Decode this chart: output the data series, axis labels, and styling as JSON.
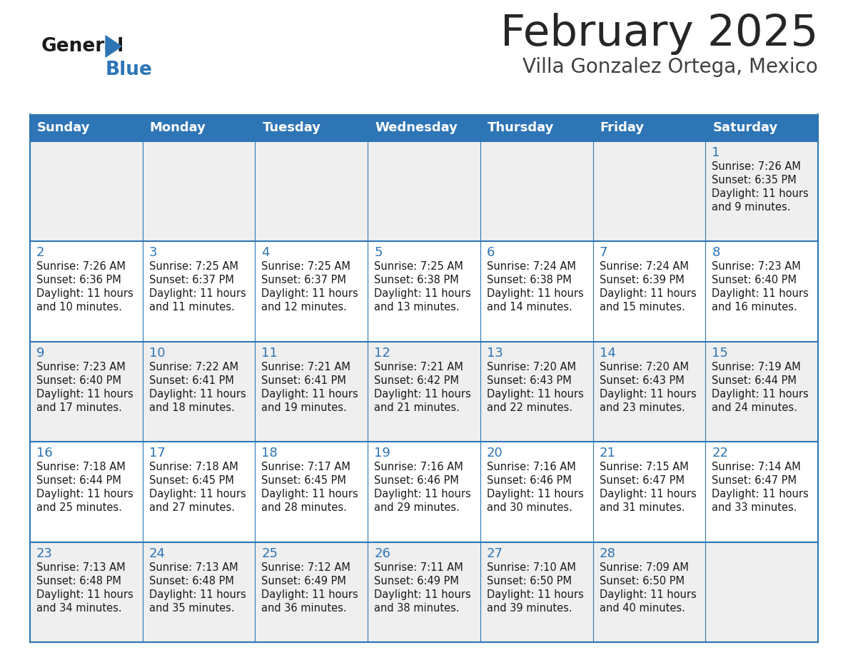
{
  "title": "February 2025",
  "subtitle": "Villa Gonzalez Ortega, Mexico",
  "header_bg": "#2e75b6",
  "header_text_color": "#ffffff",
  "cell_bg_odd": "#efefef",
  "cell_bg_even": "#ffffff",
  "border_color": "#2e75b6",
  "day_headers": [
    "Sunday",
    "Monday",
    "Tuesday",
    "Wednesday",
    "Thursday",
    "Friday",
    "Saturday"
  ],
  "title_color": "#262626",
  "subtitle_color": "#404040",
  "day_num_color": "#2e75b6",
  "cell_text_color": "#1a1a1a",
  "logo_general_color": "#1a1a1a",
  "logo_blue_color": "#2e75b6",
  "calendar_data": [
    [
      null,
      null,
      null,
      null,
      null,
      null,
      {
        "day": "1",
        "sunrise": "7:26 AM",
        "sunset": "6:35 PM",
        "daylight": "11 hours",
        "daylight2": "and 9 minutes."
      }
    ],
    [
      {
        "day": "2",
        "sunrise": "7:26 AM",
        "sunset": "6:36 PM",
        "daylight": "11 hours",
        "daylight2": "and 10 minutes."
      },
      {
        "day": "3",
        "sunrise": "7:25 AM",
        "sunset": "6:37 PM",
        "daylight": "11 hours",
        "daylight2": "and 11 minutes."
      },
      {
        "day": "4",
        "sunrise": "7:25 AM",
        "sunset": "6:37 PM",
        "daylight": "11 hours",
        "daylight2": "and 12 minutes."
      },
      {
        "day": "5",
        "sunrise": "7:25 AM",
        "sunset": "6:38 PM",
        "daylight": "11 hours",
        "daylight2": "and 13 minutes."
      },
      {
        "day": "6",
        "sunrise": "7:24 AM",
        "sunset": "6:38 PM",
        "daylight": "11 hours",
        "daylight2": "and 14 minutes."
      },
      {
        "day": "7",
        "sunrise": "7:24 AM",
        "sunset": "6:39 PM",
        "daylight": "11 hours",
        "daylight2": "and 15 minutes."
      },
      {
        "day": "8",
        "sunrise": "7:23 AM",
        "sunset": "6:40 PM",
        "daylight": "11 hours",
        "daylight2": "and 16 minutes."
      }
    ],
    [
      {
        "day": "9",
        "sunrise": "7:23 AM",
        "sunset": "6:40 PM",
        "daylight": "11 hours",
        "daylight2": "and 17 minutes."
      },
      {
        "day": "10",
        "sunrise": "7:22 AM",
        "sunset": "6:41 PM",
        "daylight": "11 hours",
        "daylight2": "and 18 minutes."
      },
      {
        "day": "11",
        "sunrise": "7:21 AM",
        "sunset": "6:41 PM",
        "daylight": "11 hours",
        "daylight2": "and 19 minutes."
      },
      {
        "day": "12",
        "sunrise": "7:21 AM",
        "sunset": "6:42 PM",
        "daylight": "11 hours",
        "daylight2": "and 21 minutes."
      },
      {
        "day": "13",
        "sunrise": "7:20 AM",
        "sunset": "6:43 PM",
        "daylight": "11 hours",
        "daylight2": "and 22 minutes."
      },
      {
        "day": "14",
        "sunrise": "7:20 AM",
        "sunset": "6:43 PM",
        "daylight": "11 hours",
        "daylight2": "and 23 minutes."
      },
      {
        "day": "15",
        "sunrise": "7:19 AM",
        "sunset": "6:44 PM",
        "daylight": "11 hours",
        "daylight2": "and 24 minutes."
      }
    ],
    [
      {
        "day": "16",
        "sunrise": "7:18 AM",
        "sunset": "6:44 PM",
        "daylight": "11 hours",
        "daylight2": "and 25 minutes."
      },
      {
        "day": "17",
        "sunrise": "7:18 AM",
        "sunset": "6:45 PM",
        "daylight": "11 hours",
        "daylight2": "and 27 minutes."
      },
      {
        "day": "18",
        "sunrise": "7:17 AM",
        "sunset": "6:45 PM",
        "daylight": "11 hours",
        "daylight2": "and 28 minutes."
      },
      {
        "day": "19",
        "sunrise": "7:16 AM",
        "sunset": "6:46 PM",
        "daylight": "11 hours",
        "daylight2": "and 29 minutes."
      },
      {
        "day": "20",
        "sunrise": "7:16 AM",
        "sunset": "6:46 PM",
        "daylight": "11 hours",
        "daylight2": "and 30 minutes."
      },
      {
        "day": "21",
        "sunrise": "7:15 AM",
        "sunset": "6:47 PM",
        "daylight": "11 hours",
        "daylight2": "and 31 minutes."
      },
      {
        "day": "22",
        "sunrise": "7:14 AM",
        "sunset": "6:47 PM",
        "daylight": "11 hours",
        "daylight2": "and 33 minutes."
      }
    ],
    [
      {
        "day": "23",
        "sunrise": "7:13 AM",
        "sunset": "6:48 PM",
        "daylight": "11 hours",
        "daylight2": "and 34 minutes."
      },
      {
        "day": "24",
        "sunrise": "7:13 AM",
        "sunset": "6:48 PM",
        "daylight": "11 hours",
        "daylight2": "and 35 minutes."
      },
      {
        "day": "25",
        "sunrise": "7:12 AM",
        "sunset": "6:49 PM",
        "daylight": "11 hours",
        "daylight2": "and 36 minutes."
      },
      {
        "day": "26",
        "sunrise": "7:11 AM",
        "sunset": "6:49 PM",
        "daylight": "11 hours",
        "daylight2": "and 38 minutes."
      },
      {
        "day": "27",
        "sunrise": "7:10 AM",
        "sunset": "6:50 PM",
        "daylight": "11 hours",
        "daylight2": "and 39 minutes."
      },
      {
        "day": "28",
        "sunrise": "7:09 AM",
        "sunset": "6:50 PM",
        "daylight": "11 hours",
        "daylight2": "and 40 minutes."
      },
      null
    ]
  ]
}
